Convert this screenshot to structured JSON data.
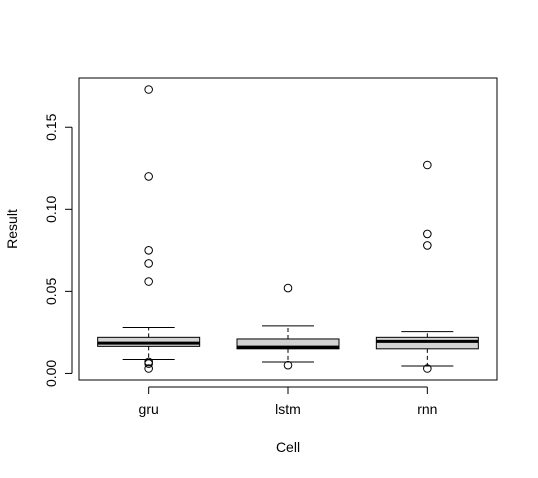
{
  "chart_data": {
    "type": "boxplot",
    "title": "",
    "xlabel": "Cell",
    "ylabel": "Result",
    "ylim": [
      -0.004,
      0.18
    ],
    "yticks": [
      0.0,
      0.05,
      0.1,
      0.15
    ],
    "ytick_labels": [
      "0.00",
      "0.05",
      "0.10",
      "0.15"
    ],
    "grid": false,
    "legend": "none",
    "box_fill": "#d3d3d3",
    "categories": [
      "gru",
      "lstm",
      "rnn"
    ],
    "boxes": [
      {
        "name": "gru",
        "whisker_low": 0.0085,
        "q1": 0.0165,
        "median": 0.0185,
        "q3": 0.022,
        "whisker_high": 0.028,
        "outliers": [
          0.173,
          0.12,
          0.075,
          0.067,
          0.056,
          0.007,
          0.006,
          0.003
        ]
      },
      {
        "name": "lstm",
        "whisker_low": 0.007,
        "q1": 0.015,
        "median": 0.016,
        "q3": 0.021,
        "whisker_high": 0.029,
        "outliers": [
          0.052,
          0.005
        ]
      },
      {
        "name": "rnn",
        "whisker_low": 0.0045,
        "q1": 0.015,
        "median": 0.0195,
        "q3": 0.022,
        "whisker_high": 0.0255,
        "outliers": [
          0.127,
          0.085,
          0.078,
          0.003
        ]
      }
    ]
  }
}
